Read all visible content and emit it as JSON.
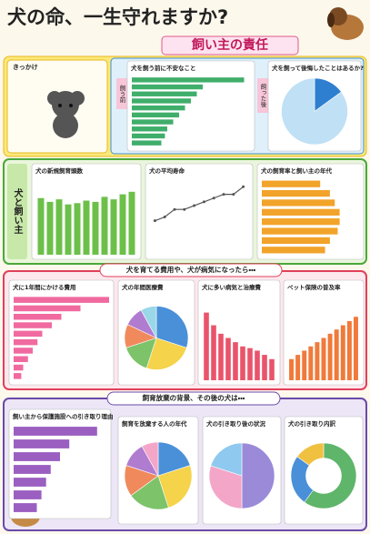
{
  "header": {
    "title": "犬の命、一生守れますか?",
    "subtitle": "飼い主の責任"
  },
  "intro": {
    "title": "きっかけ"
  },
  "side_label": "犬と飼い主",
  "period_labels": [
    "飼う前",
    "飼った後"
  ],
  "section_headings": [
    "犬を育てる費用や、犬が病気になったら・・・",
    "飼育放棄の背景、その後の犬は・・・"
  ],
  "panels": [
    {
      "title": "犬を飼う前に不安なこと",
      "chart": {
        "type": "hbar",
        "color": "#3fae6a",
        "xlim": [
          0,
          100
        ],
        "values": [
          95,
          60,
          55,
          50,
          45,
          40,
          35,
          30,
          28,
          25
        ]
      }
    },
    {
      "title": "犬を飼って後悔したことはあるか?",
      "chart": {
        "type": "pie",
        "colors": [
          "#2f7fd0",
          "#bfe0f5"
        ],
        "values": [
          15,
          85
        ]
      }
    },
    {
      "title": "犬の新規飼育頭数",
      "chart": {
        "type": "bar",
        "color": "#6cc04a",
        "ylim": [
          0,
          60
        ],
        "values": [
          45,
          42,
          44,
          40,
          41,
          43,
          42,
          46,
          44,
          48,
          50
        ]
      }
    },
    {
      "title": "犬の平均寿命",
      "chart": {
        "type": "line",
        "color": "#555555",
        "ylim": [
          13,
          15
        ],
        "values": [
          13.9,
          14.0,
          14.2,
          14.2,
          14.3,
          14.4,
          14.5,
          14.6,
          14.6,
          14.8
        ]
      }
    },
    {
      "title": "犬の飼育率と飼い主の年代",
      "chart": {
        "type": "hbar",
        "color": "#f2a32a",
        "xlim": [
          0,
          100
        ],
        "values": [
          60,
          70,
          75,
          80,
          80,
          78,
          70,
          65
        ]
      }
    },
    {
      "title": "犬に1年間にかける費用",
      "chart": {
        "type": "hbar",
        "color": "#f06aa0",
        "xlim": [
          0,
          100
        ],
        "values": [
          100,
          70,
          50,
          40,
          30,
          25,
          20,
          15,
          10,
          8
        ]
      }
    },
    {
      "title": "犬の年間医療費",
      "chart": {
        "type": "pie",
        "colors": [
          "#4a90d9",
          "#f5d34a",
          "#7cc36a",
          "#f08a5d",
          "#b07cd0",
          "#9ad7e8"
        ],
        "values": [
          30,
          25,
          15,
          12,
          10,
          8
        ]
      }
    },
    {
      "title": "犬に多い病気と治療費",
      "chart": {
        "type": "bar",
        "color": "#e9546b",
        "ylim": [
          0,
          100
        ],
        "values": [
          80,
          65,
          55,
          50,
          45,
          40,
          38,
          35,
          30,
          25
        ]
      }
    },
    {
      "title": "ペット保険の普及率",
      "chart": {
        "type": "bar",
        "color": "#f07a3a",
        "ylim": [
          0,
          20
        ],
        "values": [
          5,
          6,
          7,
          8,
          9,
          10,
          11,
          12,
          13,
          14,
          15
        ]
      }
    },
    {
      "title": "飼い主から保護施設への引き取り理由",
      "chart": {
        "type": "hbar",
        "color": "#9a5fc0",
        "xlim": [
          0,
          100
        ],
        "values": [
          90,
          60,
          50,
          40,
          35,
          30,
          25
        ]
      }
    },
    {
      "title": "飼育を放棄する人の年代",
      "chart": {
        "type": "pie",
        "colors": [
          "#4a90d9",
          "#f5d34a",
          "#7cc36a",
          "#f08a5d",
          "#b07cd0",
          "#f3a6c8"
        ],
        "values": [
          20,
          25,
          20,
          15,
          12,
          8
        ]
      }
    },
    {
      "title": "犬の引き取り後の状況",
      "chart": {
        "type": "pie",
        "colors": [
          "#9a8ad8",
          "#f3a6c8",
          "#8fc9ef"
        ],
        "values": [
          50,
          30,
          20
        ]
      }
    },
    {
      "title": "犬の引き取り内訳",
      "chart": {
        "type": "donut",
        "colors": [
          "#5fb56a",
          "#4a90d9",
          "#f0c040"
        ],
        "values": [
          60,
          25,
          15
        ]
      }
    }
  ]
}
